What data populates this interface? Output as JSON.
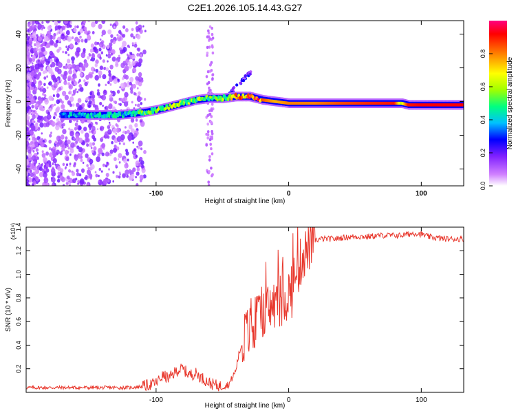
{
  "title": "C2E1.2026.105.14.43.G27",
  "chart_data": [
    {
      "type": "heatmap",
      "name": "spectrogram",
      "xlabel": "Height of straight line (km)",
      "ylabel": "Frequency (Hz)",
      "xlim": [
        -198,
        132
      ],
      "ylim": [
        -50,
        48
      ],
      "xticks": [
        -100,
        0,
        100
      ],
      "yticks": [
        -40,
        -20,
        0,
        20,
        40
      ],
      "colorbar": {
        "label": "Normalized spectral amplitude",
        "range": [
          0,
          1
        ],
        "ticks": [
          0.0,
          0.2,
          0.4,
          0.6,
          0.8
        ],
        "colors": [
          "#ffffff",
          "#d080ff",
          "#8020ff",
          "#0000ff",
          "#00c0ff",
          "#00ff80",
          "#a0ff00",
          "#ffff00",
          "#ff8000",
          "#ff0000",
          "#ff0080"
        ]
      },
      "ridge": {
        "x": [
          -172,
          -150,
          -130,
          -115,
          -100,
          -90,
          -80,
          -70,
          -60,
          -50,
          -40,
          -35,
          -30,
          -25,
          -20,
          -10,
          0,
          20,
          40,
          60,
          80,
          85,
          90,
          100,
          120,
          132
        ],
        "freq": [
          -8,
          -8,
          -8,
          -7,
          -5,
          -3,
          -1,
          1,
          2,
          2,
          3,
          3,
          3,
          2,
          1,
          0,
          -1,
          -1,
          -1,
          -1,
          -1,
          -1,
          -2,
          -2,
          -2,
          -2
        ],
        "amplitude": [
          0.35,
          0.4,
          0.4,
          0.45,
          0.55,
          0.6,
          0.55,
          0.55,
          0.5,
          0.5,
          0.7,
          0.75,
          0.8,
          0.95,
          0.85,
          0.75,
          0.8,
          0.8,
          0.85,
          0.88,
          0.9,
          0.6,
          0.9,
          0.92,
          0.92,
          0.92
        ]
      }
    },
    {
      "type": "line",
      "name": "snr",
      "xlabel": "Height of straight line (km)",
      "ylabel": "SNR (10 * v/v)",
      "y_multiplier": "(x10⁴)",
      "xlim": [
        -198,
        132
      ],
      "ylim": [
        0,
        1.4
      ],
      "xticks": [
        -100,
        0,
        100
      ],
      "yticks": [
        0.2,
        0.4,
        0.6,
        0.8,
        1.0,
        1.2,
        1.4
      ],
      "color": "#e8372c",
      "series": [
        {
          "name": "SNR",
          "x": [
            -198,
            -180,
            -160,
            -140,
            -120,
            -110,
            -100,
            -95,
            -90,
            -85,
            -80,
            -75,
            -70,
            -65,
            -60,
            -55,
            -50,
            -45,
            -40,
            -38,
            -36,
            -34,
            -32,
            -30,
            -28,
            -26,
            -24,
            -22,
            -20,
            -18,
            -16,
            -14,
            -12,
            -10,
            -8,
            -6,
            -4,
            -2,
            0,
            2,
            4,
            6,
            8,
            10,
            12,
            14,
            16,
            18,
            20,
            25,
            30,
            35,
            40,
            50,
            60,
            70,
            80,
            85,
            90,
            95,
            100,
            105,
            110,
            120,
            132
          ],
          "y": [
            0.04,
            0.04,
            0.04,
            0.04,
            0.04,
            0.05,
            0.08,
            0.14,
            0.12,
            0.18,
            0.2,
            0.15,
            0.16,
            0.12,
            0.08,
            0.06,
            0.05,
            0.07,
            0.18,
            0.3,
            0.38,
            0.45,
            0.52,
            0.5,
            0.55,
            0.5,
            0.58,
            0.65,
            0.7,
            0.62,
            0.72,
            0.7,
            0.75,
            0.72,
            0.78,
            0.72,
            0.76,
            0.8,
            0.85,
            0.82,
            0.95,
            1.0,
            1.05,
            1.15,
            1.18,
            1.2,
            1.25,
            1.27,
            1.29,
            1.3,
            1.3,
            1.3,
            1.31,
            1.32,
            1.32,
            1.33,
            1.33,
            1.33,
            1.34,
            1.35,
            1.34,
            1.32,
            1.31,
            1.3,
            1.3
          ]
        }
      ]
    }
  ]
}
